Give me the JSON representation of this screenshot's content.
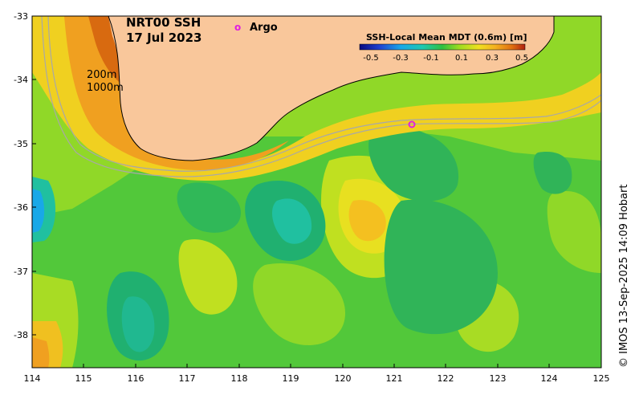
{
  "title": {
    "product": "NRT00 SSH",
    "date": "17 Jul 2023"
  },
  "legend": {
    "argo_symbol": "o",
    "argo_label": "Argo",
    "argo_color": "#e020e0"
  },
  "colorbar": {
    "title": "SSH-Local Mean MDT (0.6m) [m]",
    "ticks": [
      "-0.5",
      "-0.3",
      "-0.1",
      "0.1",
      "0.3",
      "0.5"
    ],
    "colors": [
      "#0a0a80",
      "#1f40d0",
      "#18a8e8",
      "#20c8b0",
      "#30c040",
      "#9cdc20",
      "#f0e020",
      "#f4b020",
      "#e07010",
      "#b02010"
    ]
  },
  "isobaths": {
    "shallow": "200m",
    "deep": "1000m"
  },
  "axes": {
    "x_ticks": [
      "114",
      "115",
      "116",
      "117",
      "118",
      "119",
      "120",
      "121",
      "122",
      "123",
      "124",
      "125"
    ],
    "y_ticks": [
      "-33",
      "-34",
      "-35",
      "-36",
      "-37",
      "-38"
    ]
  },
  "credit": "© IMOS 13-Sep-2025 14:09 Hobart",
  "colors": {
    "land": "#f9c79b",
    "ocean_base": "#52c83a",
    "coast": "#000000",
    "isobath_line": "#a8a8a8"
  }
}
